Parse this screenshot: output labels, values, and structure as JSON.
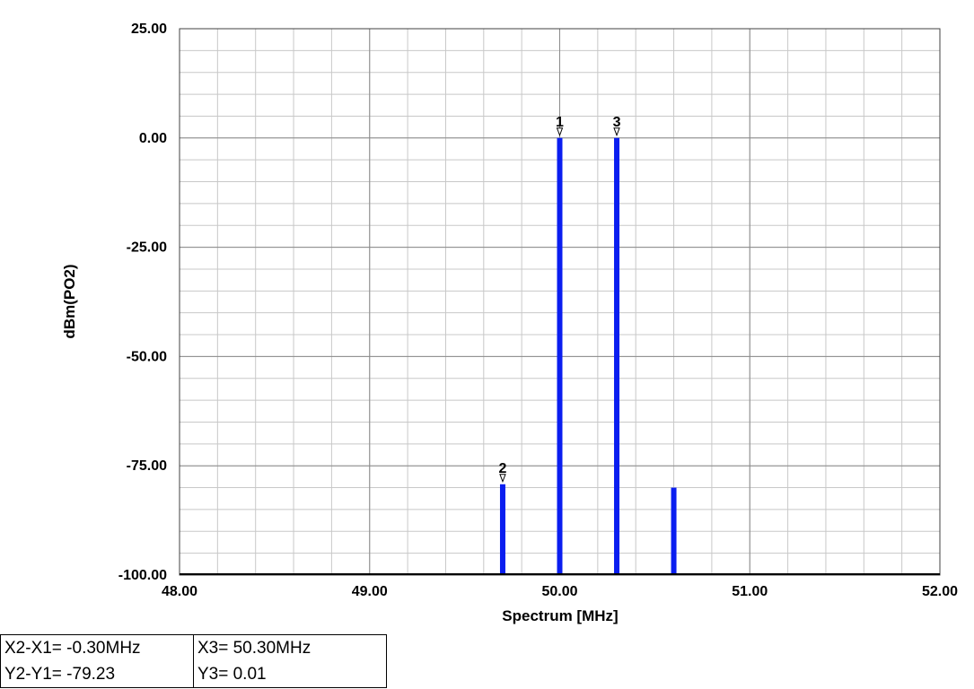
{
  "chart_data": {
    "type": "bar",
    "xlabel": "Spectrum [MHz]",
    "ylabel": "dBm(PO2)",
    "xlim": [
      48.0,
      52.0
    ],
    "ylim": [
      -100.0,
      25.0
    ],
    "x_ticks": [
      "48.00",
      "49.00",
      "50.00",
      "51.00",
      "52.00"
    ],
    "y_ticks": [
      "25.00",
      "0.00",
      "-25.00",
      "-50.00",
      "-75.00",
      "-100.00"
    ],
    "grid": true,
    "series_color": "#0a1ef0",
    "series": [
      {
        "points": [
          {
            "x": 49.4,
            "y": -100.0
          },
          {
            "x": 49.7,
            "y": -79.22
          },
          {
            "x": 50.0,
            "y": 0.01
          },
          {
            "x": 50.3,
            "y": 0.01
          },
          {
            "x": 50.6,
            "y": -80.0
          },
          {
            "x": 50.9,
            "y": -100.0
          }
        ]
      }
    ],
    "markers": [
      {
        "label": "1",
        "x": 50.0,
        "y": 0.01
      },
      {
        "label": "2",
        "x": 49.7,
        "y": -79.22
      },
      {
        "label": "3",
        "x": 50.3,
        "y": 0.01
      }
    ]
  },
  "readout": {
    "dx": "X2-X1= -0.30MHz",
    "dy": "Y2-Y1= -79.23",
    "x3": "X3= 50.30MHz",
    "y3": "Y3= 0.01"
  }
}
